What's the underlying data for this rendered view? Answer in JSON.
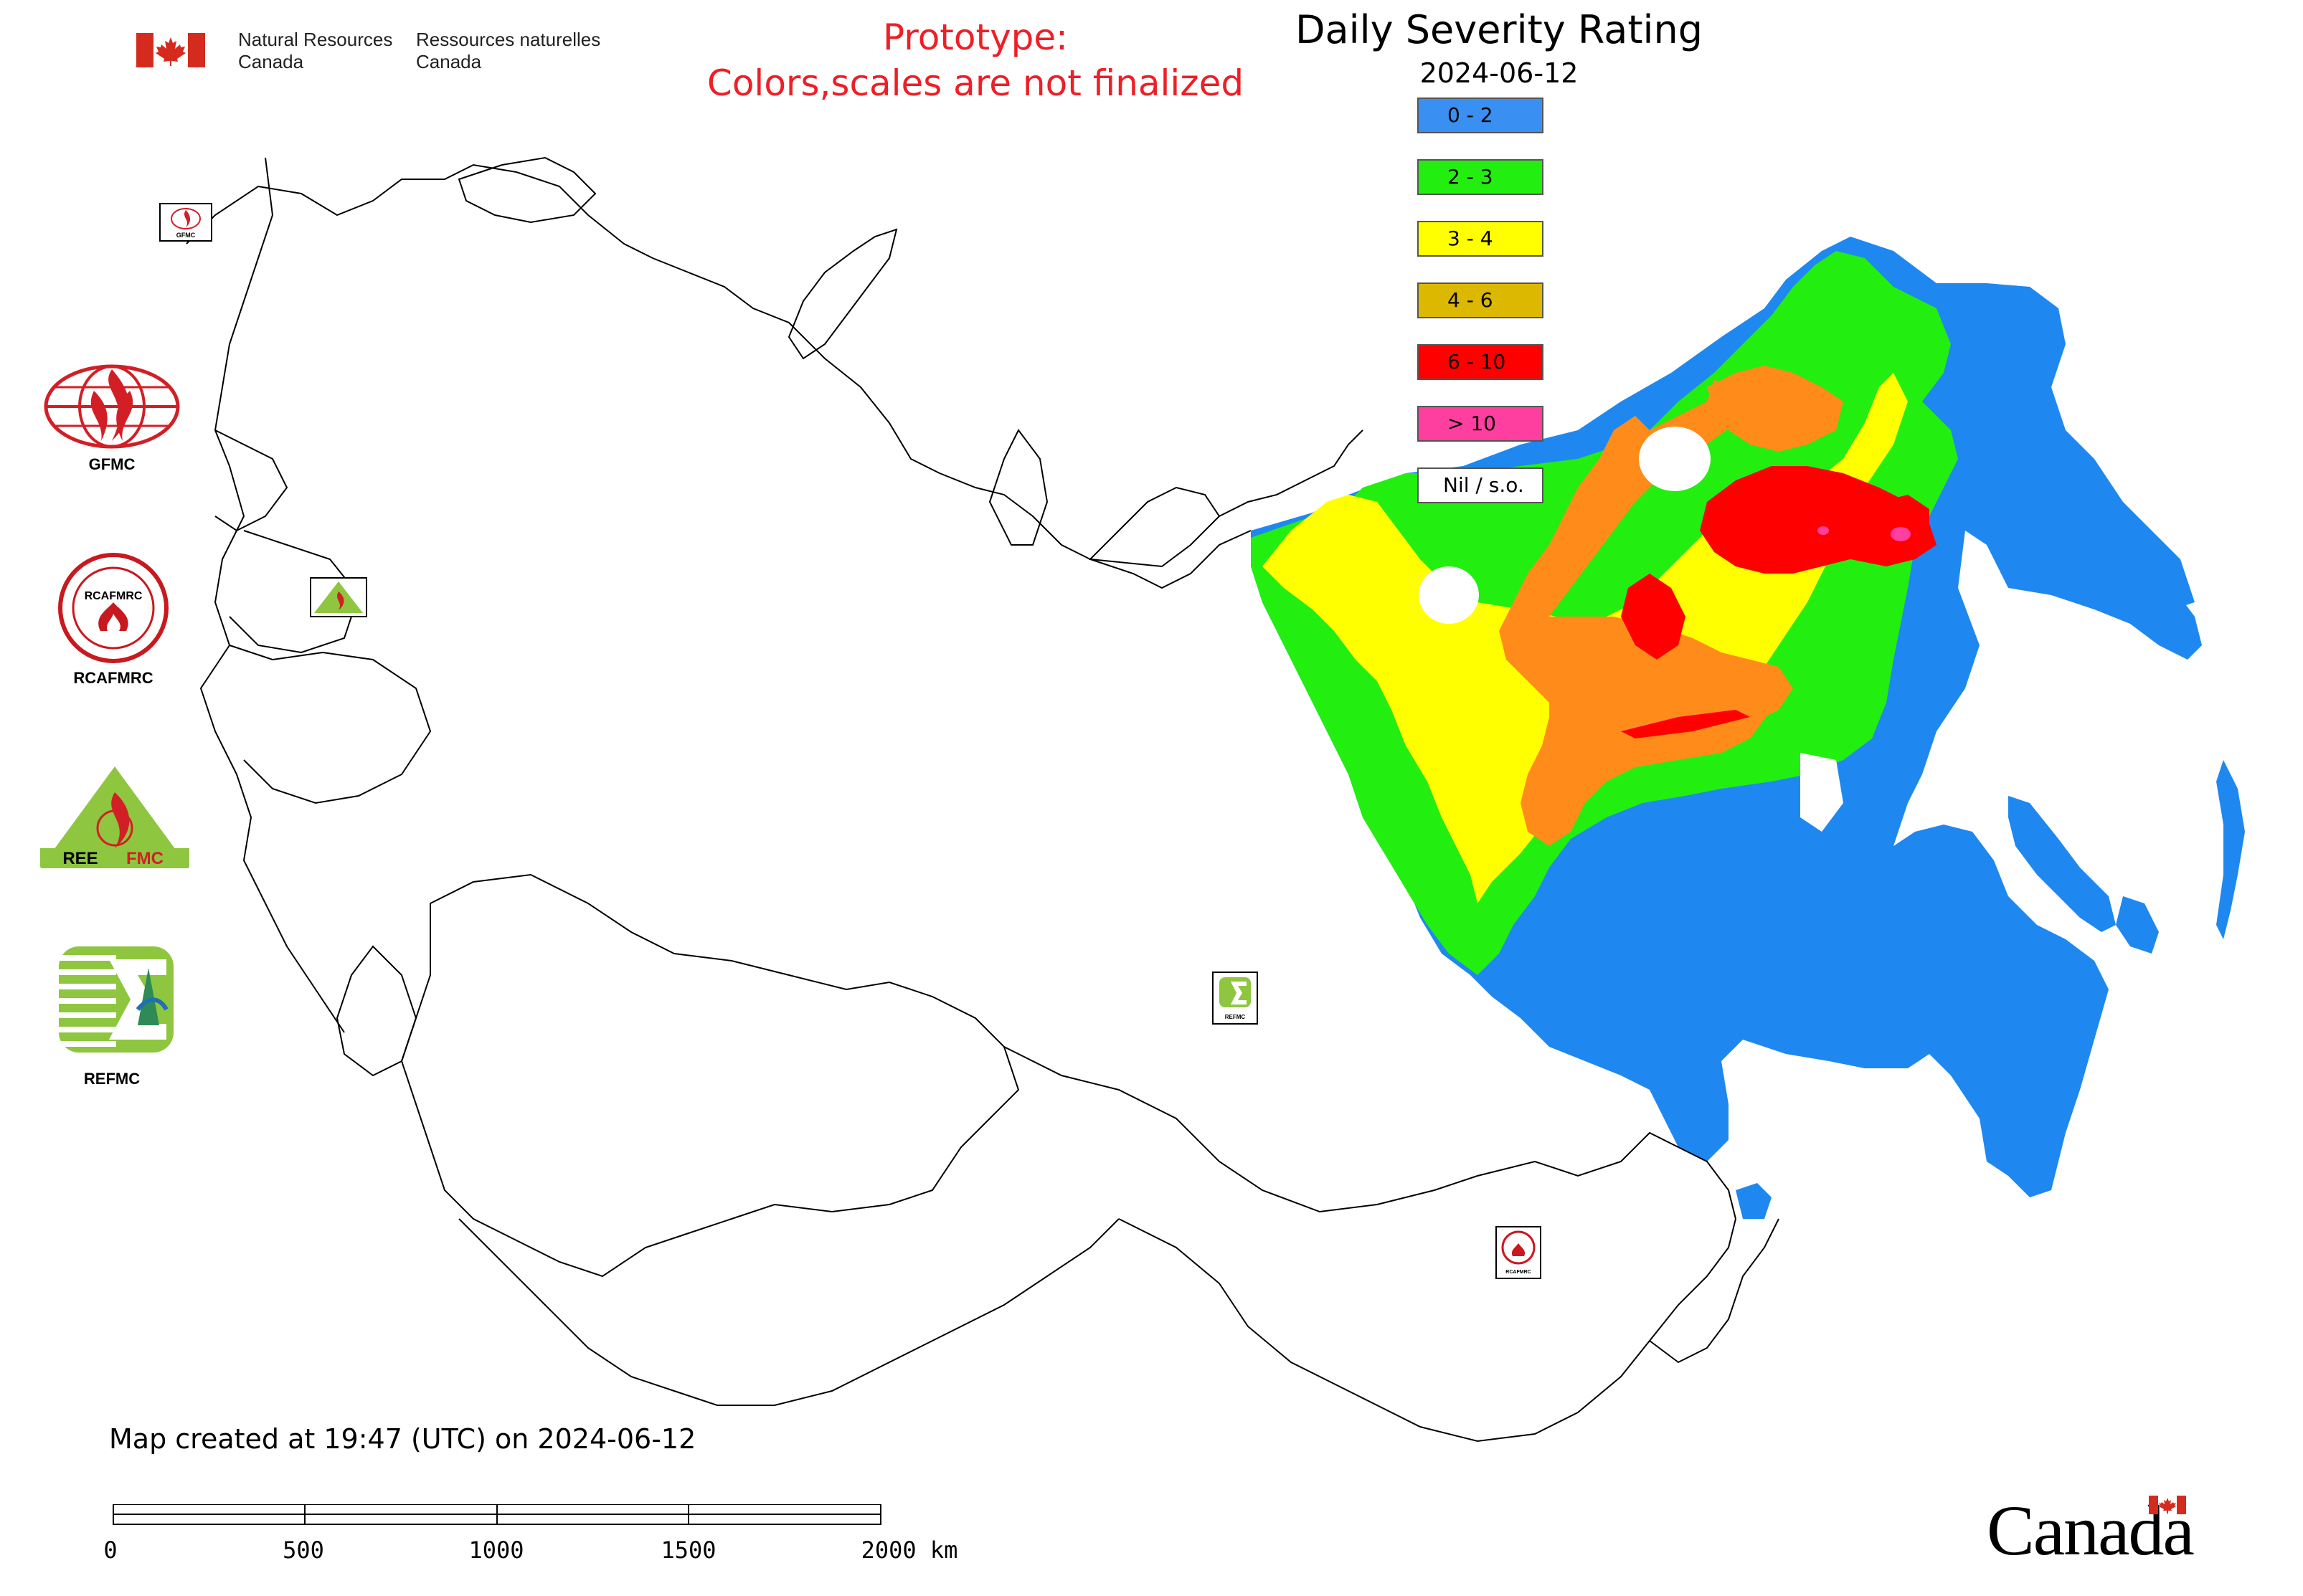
{
  "header": {
    "org_en_line1": "Natural Resources",
    "org_en_line2": "Canada",
    "org_fr_line1": "Ressources naturelles",
    "org_fr_line2": "Canada",
    "prototype_line1": "Prototype:",
    "prototype_line2": "Colors,scales are not finalized",
    "title": "Daily Severity Rating",
    "date": "2024-06-12"
  },
  "legend": {
    "items": [
      {
        "label": "0 - 2",
        "color": "#3a8ff2"
      },
      {
        "label": "2 - 3",
        "color": "#22ee10"
      },
      {
        "label": "3 - 4",
        "color": "#ffff00"
      },
      {
        "label": "4 - 6",
        "color": "#dcb800"
      },
      {
        "label": "6 - 10",
        "color": "#ff0000"
      },
      {
        "label": "> 10",
        "color": "#ff3fa0"
      },
      {
        "label": "Nil / s.o.",
        "color": "#ffffff"
      }
    ]
  },
  "map_colors": {
    "blue": "#1e88f0",
    "green": "#22ee10",
    "yellow": "#ffff00",
    "orange": "#ff8c1a",
    "red": "#ff0000",
    "magenta": "#ff3fa0",
    "border": "#000000"
  },
  "logos": {
    "gfmc": "GFMC",
    "rcafmrc": "RCAFMRC",
    "reefmc": "REEFMC",
    "refmc": "REFMC",
    "rcafmrc_ring": "RCAFMRC",
    "reefmc_inner": "REE",
    "reefmc_inner2": "FMC",
    "small_gfmc": "GFMC",
    "small_refmc": "REFMC",
    "small_rcafmrc": "RCAFMRC"
  },
  "footer": {
    "created": "Map created at 19:47 (UTC) on 2024-06-12",
    "scale_ticks": [
      "0",
      "500",
      "1000",
      "1500",
      "2000 km"
    ],
    "wordmark": "Canada"
  }
}
